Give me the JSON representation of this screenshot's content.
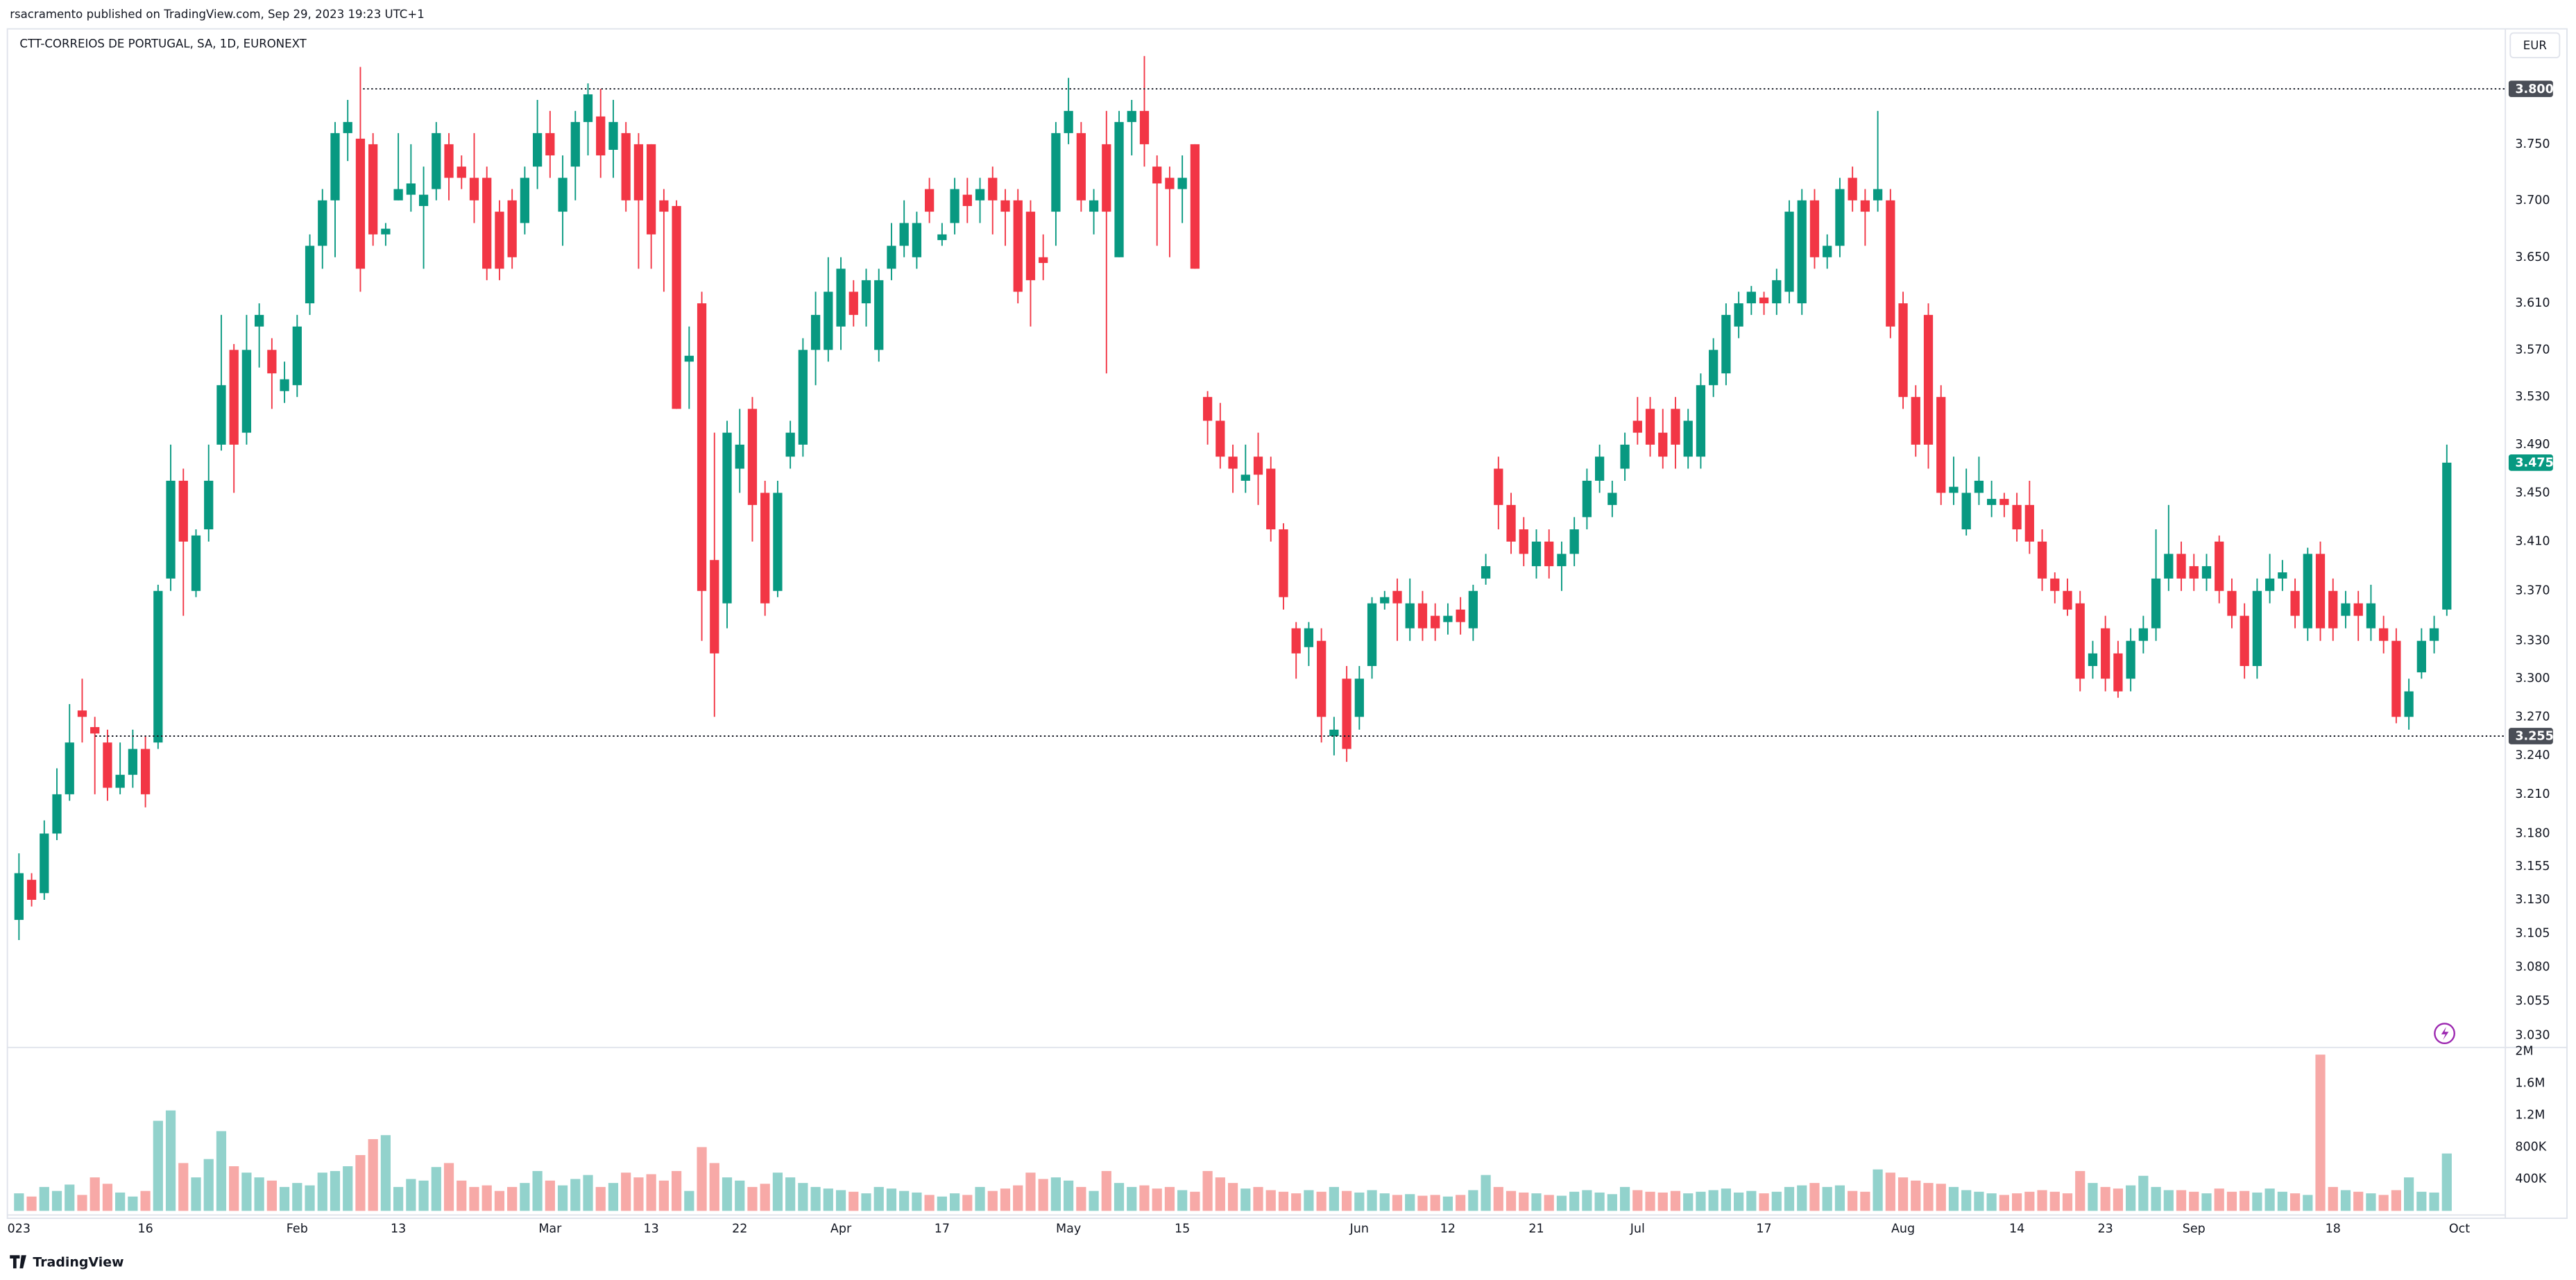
{
  "chart_data": {
    "type": "candlestick",
    "publisher": "rsacramento published on TradingView.com, Sep 29, 2023 19:23 UTC+1",
    "title": "CTT-CORREIOS DE PORTUGAL, SA, 1D, EURONEXT",
    "currency": "EUR",
    "brand": "TradingView",
    "log_scale": true,
    "grid": false,
    "up_color": "#089981",
    "down_color": "#f23645",
    "volume_up_color": "#92d2cc",
    "volume_down_color": "#f7a9a7",
    "xlim": [
      -1.5,
      196.5
    ],
    "xticks": [
      {
        "value": 0,
        "label": "023"
      },
      {
        "value": 10,
        "label": "16"
      },
      {
        "value": 22,
        "label": "Feb"
      },
      {
        "value": 30,
        "label": "13"
      },
      {
        "value": 42,
        "label": "Mar"
      },
      {
        "value": 50,
        "label": "13"
      },
      {
        "value": 57,
        "label": "22"
      },
      {
        "value": 65,
        "label": "Apr"
      },
      {
        "value": 73,
        "label": "17"
      },
      {
        "value": 83,
        "label": "May"
      },
      {
        "value": 92,
        "label": "15"
      },
      {
        "value": 106,
        "label": "Jun"
      },
      {
        "value": 113,
        "label": "12"
      },
      {
        "value": 120,
        "label": "21"
      },
      {
        "value": 128,
        "label": "Jul"
      },
      {
        "value": 138,
        "label": "17"
      },
      {
        "value": 149,
        "label": "Aug"
      },
      {
        "value": 158,
        "label": "14"
      },
      {
        "value": 165,
        "label": "23"
      },
      {
        "value": 172,
        "label": "Sep"
      },
      {
        "value": 183,
        "label": "18"
      },
      {
        "value": 193,
        "label": "Oct"
      }
    ],
    "ylim": [
      3.022,
      3.824
    ],
    "yticks": [
      {
        "value": 3.75,
        "label": "3.750"
      },
      {
        "value": 3.7,
        "label": "3.700"
      },
      {
        "value": 3.65,
        "label": "3.650"
      },
      {
        "value": 3.61,
        "label": "3.610"
      },
      {
        "value": 3.57,
        "label": "3.570"
      },
      {
        "value": 3.53,
        "label": "3.530"
      },
      {
        "value": 3.49,
        "label": "3.490"
      },
      {
        "value": 3.45,
        "label": "3.450"
      },
      {
        "value": 3.41,
        "label": "3.410"
      },
      {
        "value": 3.37,
        "label": "3.370"
      },
      {
        "value": 3.33,
        "label": "3.330"
      },
      {
        "value": 3.3,
        "label": "3.300"
      },
      {
        "value": 3.27,
        "label": "3.270"
      },
      {
        "value": 3.24,
        "label": "3.240"
      },
      {
        "value": 3.21,
        "label": "3.210"
      },
      {
        "value": 3.18,
        "label": "3.180"
      },
      {
        "value": 3.155,
        "label": "3.155"
      },
      {
        "value": 3.13,
        "label": "3.130"
      },
      {
        "value": 3.105,
        "label": "3.105"
      },
      {
        "value": 3.08,
        "label": "3.080"
      },
      {
        "value": 3.055,
        "label": "3.055"
      },
      {
        "value": 3.03,
        "label": "3.030"
      }
    ],
    "y2lim": [
      0,
      2040000
    ],
    "y2ticks": [
      {
        "value": 2000000,
        "label": "2M"
      },
      {
        "value": 1600000,
        "label": "1.6M"
      },
      {
        "value": 1200000,
        "label": "1.2M"
      },
      {
        "value": 800000,
        "label": "800K"
      },
      {
        "value": 400000,
        "label": "400K"
      }
    ],
    "high_line": {
      "value": 3.8,
      "label": "3.800"
    },
    "low_line": {
      "value": 3.255,
      "label": "3.255"
    },
    "last_price": {
      "value": 3.475,
      "label": "3.475"
    },
    "open": [
      3.115,
      3.145,
      3.135,
      3.18,
      3.21,
      3.275,
      3.262,
      3.25,
      3.215,
      3.225,
      3.245,
      3.25,
      3.38,
      3.46,
      3.37,
      3.42,
      3.49,
      3.57,
      3.5,
      3.59,
      3.57,
      3.535,
      3.54,
      3.61,
      3.66,
      3.7,
      3.76,
      3.755,
      3.75,
      3.67,
      3.7,
      3.705,
      3.695,
      3.71,
      3.75,
      3.73,
      3.72,
      3.72,
      3.69,
      3.7,
      3.68,
      3.73,
      3.76,
      3.69,
      3.73,
      3.77,
      3.775,
      3.745,
      3.76,
      3.75,
      3.75,
      3.7,
      3.695,
      3.56,
      3.61,
      3.395,
      3.36,
      3.47,
      3.52,
      3.45,
      3.37,
      3.48,
      3.49,
      3.57,
      3.57,
      3.59,
      3.62,
      3.61,
      3.57,
      3.64,
      3.66,
      3.65,
      3.71,
      3.665,
      3.68,
      3.705,
      3.7,
      3.72,
      3.7,
      3.7,
      3.69,
      3.65,
      3.69,
      3.76,
      3.76,
      3.69,
      3.75,
      3.65,
      3.77,
      3.78,
      3.73,
      3.72,
      3.71,
      3.75,
      3.53,
      3.51,
      3.48,
      3.46,
      3.48,
      3.47,
      3.42,
      3.34,
      3.325,
      3.33,
      3.255,
      3.3,
      3.27,
      3.31,
      3.36,
      3.37,
      3.34,
      3.36,
      3.35,
      3.345,
      3.355,
      3.34,
      3.38,
      3.47,
      3.44,
      3.42,
      3.39,
      3.41,
      3.39,
      3.4,
      3.43,
      3.46,
      3.44,
      3.47,
      3.51,
      3.52,
      3.5,
      3.52,
      3.48,
      3.48,
      3.54,
      3.55,
      3.59,
      3.61,
      3.615,
      3.61,
      3.62,
      3.61,
      3.7,
      3.65,
      3.66,
      3.72,
      3.7,
      3.7,
      3.7,
      3.61,
      3.53,
      3.6,
      3.53,
      3.45,
      3.42,
      3.45,
      3.44,
      3.445,
      3.44,
      3.44,
      3.41,
      3.38,
      3.37,
      3.36,
      3.31,
      3.34,
      3.32,
      3.3,
      3.33,
      3.34,
      3.38,
      3.4,
      3.39,
      3.38,
      3.41,
      3.37,
      3.35,
      3.31,
      3.37,
      3.38,
      3.37,
      3.34,
      3.4,
      3.37,
      3.35,
      3.36,
      3.34,
      3.34,
      3.33,
      3.27,
      3.305,
      3.33,
      3.355
    ],
    "high": [
      3.165,
      3.15,
      3.19,
      3.23,
      3.28,
      3.3,
      3.27,
      3.26,
      3.25,
      3.26,
      3.255,
      3.375,
      3.49,
      3.47,
      3.42,
      3.49,
      3.6,
      3.575,
      3.6,
      3.61,
      3.58,
      3.56,
      3.6,
      3.67,
      3.71,
      3.77,
      3.79,
      3.82,
      3.76,
      3.68,
      3.76,
      3.75,
      3.73,
      3.77,
      3.76,
      3.74,
      3.76,
      3.73,
      3.7,
      3.71,
      3.73,
      3.79,
      3.78,
      3.74,
      3.78,
      3.805,
      3.8,
      3.79,
      3.77,
      3.76,
      3.75,
      3.71,
      3.7,
      3.59,
      3.62,
      3.5,
      3.51,
      3.52,
      3.53,
      3.46,
      3.46,
      3.51,
      3.58,
      3.62,
      3.65,
      3.65,
      3.63,
      3.64,
      3.64,
      3.68,
      3.7,
      3.69,
      3.72,
      3.68,
      3.72,
      3.72,
      3.72,
      3.73,
      3.71,
      3.71,
      3.7,
      3.67,
      3.77,
      3.81,
      3.77,
      3.71,
      3.78,
      3.78,
      3.79,
      3.83,
      3.74,
      3.73,
      3.74,
      3.75,
      3.535,
      3.525,
      3.49,
      3.49,
      3.5,
      3.48,
      3.425,
      3.345,
      3.345,
      3.34,
      3.27,
      3.31,
      3.31,
      3.365,
      3.37,
      3.38,
      3.38,
      3.37,
      3.36,
      3.36,
      3.365,
      3.375,
      3.4,
      3.48,
      3.45,
      3.43,
      3.42,
      3.42,
      3.41,
      3.43,
      3.47,
      3.49,
      3.46,
      3.5,
      3.53,
      3.53,
      3.52,
      3.53,
      3.52,
      3.55,
      3.58,
      3.61,
      3.62,
      3.625,
      3.62,
      3.64,
      3.7,
      3.71,
      3.71,
      3.67,
      3.72,
      3.73,
      3.71,
      3.78,
      3.71,
      3.62,
      3.54,
      3.61,
      3.54,
      3.48,
      3.47,
      3.48,
      3.46,
      3.45,
      3.45,
      3.46,
      3.42,
      3.385,
      3.38,
      3.37,
      3.33,
      3.35,
      3.33,
      3.34,
      3.35,
      3.42,
      3.44,
      3.41,
      3.4,
      3.4,
      3.415,
      3.38,
      3.36,
      3.38,
      3.4,
      3.395,
      3.38,
      3.405,
      3.41,
      3.38,
      3.37,
      3.37,
      3.375,
      3.35,
      3.34,
      3.3,
      3.34,
      3.35,
      3.49
    ],
    "low": [
      3.1,
      3.125,
      3.13,
      3.175,
      3.205,
      3.25,
      3.21,
      3.205,
      3.21,
      3.215,
      3.2,
      3.245,
      3.37,
      3.35,
      3.365,
      3.41,
      3.485,
      3.45,
      3.49,
      3.555,
      3.52,
      3.525,
      3.53,
      3.6,
      3.64,
      3.65,
      3.735,
      3.62,
      3.66,
      3.66,
      3.7,
      3.69,
      3.64,
      3.7,
      3.7,
      3.71,
      3.68,
      3.63,
      3.63,
      3.64,
      3.67,
      3.71,
      3.72,
      3.66,
      3.7,
      3.74,
      3.72,
      3.72,
      3.69,
      3.64,
      3.64,
      3.62,
      3.52,
      3.52,
      3.33,
      3.27,
      3.34,
      3.45,
      3.41,
      3.35,
      3.365,
      3.47,
      3.48,
      3.54,
      3.56,
      3.57,
      3.59,
      3.59,
      3.56,
      3.63,
      3.65,
      3.64,
      3.68,
      3.66,
      3.67,
      3.68,
      3.68,
      3.67,
      3.66,
      3.61,
      3.59,
      3.63,
      3.66,
      3.75,
      3.69,
      3.67,
      3.55,
      3.65,
      3.74,
      3.73,
      3.66,
      3.65,
      3.68,
      3.64,
      3.49,
      3.47,
      3.45,
      3.45,
      3.44,
      3.41,
      3.355,
      3.3,
      3.31,
      3.25,
      3.24,
      3.235,
      3.26,
      3.3,
      3.355,
      3.33,
      3.33,
      3.33,
      3.33,
      3.335,
      3.335,
      3.33,
      3.375,
      3.42,
      3.4,
      3.39,
      3.38,
      3.38,
      3.37,
      3.39,
      3.42,
      3.45,
      3.43,
      3.46,
      3.49,
      3.48,
      3.47,
      3.47,
      3.47,
      3.47,
      3.53,
      3.54,
      3.58,
      3.6,
      3.6,
      3.6,
      3.61,
      3.6,
      3.64,
      3.64,
      3.65,
      3.69,
      3.66,
      3.69,
      3.58,
      3.52,
      3.48,
      3.47,
      3.44,
      3.44,
      3.415,
      3.44,
      3.43,
      3.43,
      3.41,
      3.4,
      3.37,
      3.36,
      3.35,
      3.29,
      3.3,
      3.29,
      3.285,
      3.29,
      3.32,
      3.33,
      3.37,
      3.37,
      3.37,
      3.37,
      3.36,
      3.34,
      3.3,
      3.3,
      3.36,
      3.37,
      3.34,
      3.33,
      3.33,
      3.33,
      3.34,
      3.33,
      3.33,
      3.32,
      3.265,
      3.26,
      3.3,
      3.32,
      3.35
    ],
    "close": [
      3.15,
      3.13,
      3.18,
      3.21,
      3.25,
      3.27,
      3.257,
      3.215,
      3.225,
      3.245,
      3.21,
      3.37,
      3.46,
      3.41,
      3.415,
      3.46,
      3.54,
      3.49,
      3.57,
      3.6,
      3.55,
      3.545,
      3.59,
      3.66,
      3.7,
      3.76,
      3.77,
      3.64,
      3.67,
      3.675,
      3.71,
      3.715,
      3.705,
      3.76,
      3.72,
      3.72,
      3.7,
      3.64,
      3.64,
      3.65,
      3.72,
      3.76,
      3.74,
      3.72,
      3.77,
      3.795,
      3.74,
      3.77,
      3.7,
      3.7,
      3.67,
      3.69,
      3.52,
      3.565,
      3.37,
      3.32,
      3.5,
      3.49,
      3.44,
      3.36,
      3.45,
      3.5,
      3.57,
      3.6,
      3.62,
      3.64,
      3.6,
      3.63,
      3.63,
      3.66,
      3.68,
      3.68,
      3.69,
      3.67,
      3.71,
      3.695,
      3.71,
      3.7,
      3.69,
      3.62,
      3.63,
      3.645,
      3.76,
      3.78,
      3.7,
      3.7,
      3.69,
      3.77,
      3.78,
      3.75,
      3.715,
      3.71,
      3.72,
      3.64,
      3.51,
      3.48,
      3.47,
      3.465,
      3.465,
      3.42,
      3.365,
      3.32,
      3.34,
      3.27,
      3.26,
      3.245,
      3.3,
      3.36,
      3.365,
      3.36,
      3.36,
      3.34,
      3.34,
      3.35,
      3.345,
      3.37,
      3.39,
      3.44,
      3.41,
      3.4,
      3.41,
      3.39,
      3.4,
      3.42,
      3.46,
      3.48,
      3.45,
      3.49,
      3.5,
      3.49,
      3.48,
      3.49,
      3.51,
      3.54,
      3.57,
      3.6,
      3.61,
      3.62,
      3.61,
      3.63,
      3.69,
      3.7,
      3.65,
      3.66,
      3.71,
      3.7,
      3.69,
      3.71,
      3.59,
      3.53,
      3.49,
      3.49,
      3.45,
      3.455,
      3.45,
      3.46,
      3.445,
      3.44,
      3.42,
      3.41,
      3.38,
      3.37,
      3.355,
      3.3,
      3.32,
      3.3,
      3.29,
      3.33,
      3.34,
      3.38,
      3.4,
      3.38,
      3.38,
      3.39,
      3.37,
      3.35,
      3.31,
      3.37,
      3.38,
      3.385,
      3.35,
      3.4,
      3.34,
      3.34,
      3.36,
      3.35,
      3.36,
      3.33,
      3.27,
      3.29,
      3.33,
      3.34,
      3.475
    ],
    "volume": [
      220000,
      180000,
      300000,
      250000,
      330000,
      200000,
      420000,
      340000,
      230000,
      180000,
      250000,
      1130000,
      1260000,
      600000,
      420000,
      650000,
      1000000,
      560000,
      480000,
      420000,
      380000,
      300000,
      350000,
      320000,
      480000,
      500000,
      560000,
      700000,
      900000,
      950000,
      300000,
      400000,
      380000,
      550000,
      600000,
      380000,
      300000,
      320000,
      250000,
      300000,
      350000,
      500000,
      380000,
      320000,
      400000,
      450000,
      300000,
      350000,
      480000,
      420000,
      460000,
      380000,
      500000,
      250000,
      800000,
      600000,
      420000,
      380000,
      300000,
      340000,
      480000,
      420000,
      350000,
      300000,
      280000,
      260000,
      240000,
      220000,
      300000,
      280000,
      250000,
      230000,
      200000,
      180000,
      220000,
      200000,
      300000,
      250000,
      280000,
      320000,
      480000,
      400000,
      420000,
      380000,
      300000,
      250000,
      500000,
      350000,
      300000,
      320000,
      280000,
      300000,
      260000,
      240000,
      500000,
      420000,
      350000,
      280000,
      300000,
      260000,
      240000,
      220000,
      260000,
      240000,
      300000,
      250000,
      230000,
      260000,
      220000,
      200000,
      210000,
      190000,
      200000,
      180000,
      200000,
      260000,
      450000,
      300000,
      250000,
      230000,
      220000,
      200000,
      190000,
      240000,
      260000,
      230000,
      210000,
      300000,
      260000,
      240000,
      230000,
      250000,
      220000,
      240000,
      260000,
      280000,
      230000,
      250000,
      220000,
      240000,
      300000,
      320000,
      350000,
      300000,
      320000,
      250000,
      240000,
      520000,
      480000,
      420000,
      380000,
      350000,
      340000,
      300000,
      260000,
      240000,
      220000,
      200000,
      220000,
      240000,
      260000,
      240000,
      220000,
      500000,
      350000,
      300000,
      280000,
      320000,
      440000,
      300000,
      260000,
      260000,
      240000,
      220000,
      280000,
      240000,
      250000,
      230000,
      280000,
      240000,
      220000,
      200000,
      1960000,
      300000,
      260000,
      240000,
      220000,
      200000,
      260000,
      420000,
      240000,
      230000,
      720000
    ]
  }
}
